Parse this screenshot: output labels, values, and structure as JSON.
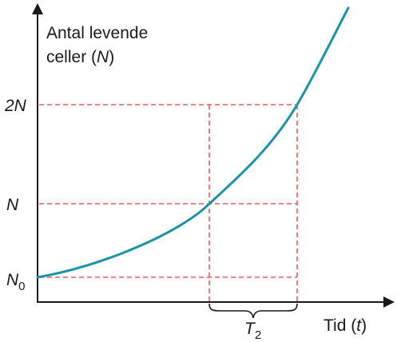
{
  "ylabel_line1": "Antal levende",
  "ylabel_line2_prefix": "celler (",
  "ylabel_line2_var": "N",
  "ylabel_line2_suffix": ")",
  "xlabel_prefix": "Tid (",
  "xlabel_var": "t",
  "xlabel_suffix": ")",
  "tick_2N": "2N",
  "tick_N": "N",
  "tick_N0_main": "N",
  "tick_N0_sub": "0",
  "interval_main": "T",
  "interval_sub": "2",
  "colors": {
    "curve": "#1a93ab",
    "guides": "#e03a3a",
    "axes": "#1a1a1a"
  }
}
